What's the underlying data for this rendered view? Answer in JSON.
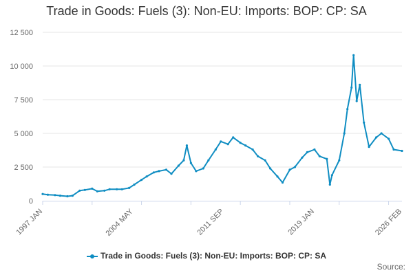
{
  "chart_data": {
    "type": "line",
    "title": "Trade in Goods: Fuels (3): Non-EU: Imports: BOP: CP: SA",
    "xlabel": "",
    "ylabel": "",
    "ylim": [
      0,
      12500
    ],
    "yticks": [
      0,
      2500,
      5000,
      7500,
      10000,
      12500
    ],
    "ytick_labels": [
      "0",
      "2 500",
      "5 000",
      "7 500",
      "10 000",
      "12 500"
    ],
    "x_range": [
      "1997-01",
      "2026-02"
    ],
    "xtick_positions": [
      "1997-01",
      "2004-05",
      "2011-09",
      "2019-01",
      "2026-02"
    ],
    "xtick_labels": [
      "1997 JAN",
      "2004 MAY",
      "2011 SEP",
      "2019 JAN",
      "2026 FEB"
    ],
    "grid": true,
    "legend_position": "bottom-center",
    "series": [
      {
        "name": "Trade in Goods: Fuels (3): Non-EU: Imports: BOP: CP: SA",
        "color": "#0f8dc2",
        "x": [
          "1997-01",
          "1997-06",
          "1998-01",
          "1998-06",
          "1999-01",
          "1999-06",
          "2000-01",
          "2000-06",
          "2001-01",
          "2001-06",
          "2002-01",
          "2002-06",
          "2003-01",
          "2003-06",
          "2004-01",
          "2004-06",
          "2005-01",
          "2005-06",
          "2006-01",
          "2006-06",
          "2007-01",
          "2007-06",
          "2008-01",
          "2008-06",
          "2008-09",
          "2009-01",
          "2009-06",
          "2010-01",
          "2010-06",
          "2011-01",
          "2011-06",
          "2012-01",
          "2012-06",
          "2013-01",
          "2013-06",
          "2014-01",
          "2014-06",
          "2015-01",
          "2015-06",
          "2016-01",
          "2016-06",
          "2017-01",
          "2017-06",
          "2018-01",
          "2018-06",
          "2019-01",
          "2019-06",
          "2020-01",
          "2020-04",
          "2020-06",
          "2021-01",
          "2021-06",
          "2021-09",
          "2022-01",
          "2022-03",
          "2022-06",
          "2022-09",
          "2023-01",
          "2023-06",
          "2024-01",
          "2024-06",
          "2025-01",
          "2025-06",
          "2026-02"
        ],
        "values": [
          500,
          450,
          420,
          380,
          330,
          380,
          750,
          800,
          900,
          700,
          750,
          850,
          850,
          850,
          950,
          1200,
          1550,
          1800,
          2100,
          2200,
          2300,
          2000,
          2600,
          3000,
          4100,
          2800,
          2200,
          2400,
          3000,
          3800,
          4400,
          4200,
          4700,
          4300,
          4100,
          3800,
          3300,
          3000,
          2400,
          1800,
          1350,
          2300,
          2500,
          3200,
          3600,
          3800,
          3300,
          3100,
          1200,
          1900,
          3000,
          5000,
          6800,
          8400,
          10800,
          7400,
          8600,
          5800,
          4000,
          4700,
          5000,
          4600,
          3800,
          3700
        ]
      }
    ]
  },
  "legend": {
    "label": "Trade in Goods: Fuels (3): Non-EU: Imports: BOP: CP: SA"
  },
  "credits": {
    "label": "Source:"
  }
}
